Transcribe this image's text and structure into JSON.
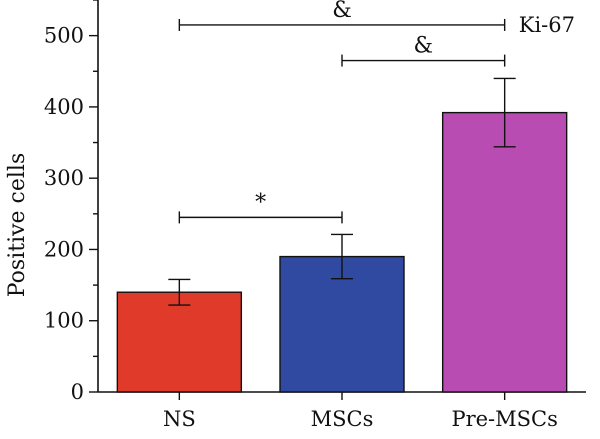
{
  "chart_data": {
    "type": "bar",
    "categories": [
      "NS",
      "MSCs",
      "Pre-MSCs"
    ],
    "values": [
      140,
      190,
      392
    ],
    "errors": [
      18,
      31,
      48
    ],
    "colors": [
      "#e03a2a",
      "#2f4aa0",
      "#b94cb2"
    ],
    "title": "",
    "xlabel": "",
    "ylabel": "Positive cells",
    "ylim": [
      0,
      550
    ],
    "yticks": [
      0,
      100,
      200,
      300,
      400,
      500
    ],
    "annotation": "Ki-67",
    "significance": [
      {
        "from": 0,
        "to": 2,
        "y": 515,
        "label": "&"
      },
      {
        "from": 1,
        "to": 2,
        "y": 465,
        "label": "&"
      },
      {
        "from": 0,
        "to": 1,
        "y": 245,
        "label": "*"
      }
    ]
  }
}
